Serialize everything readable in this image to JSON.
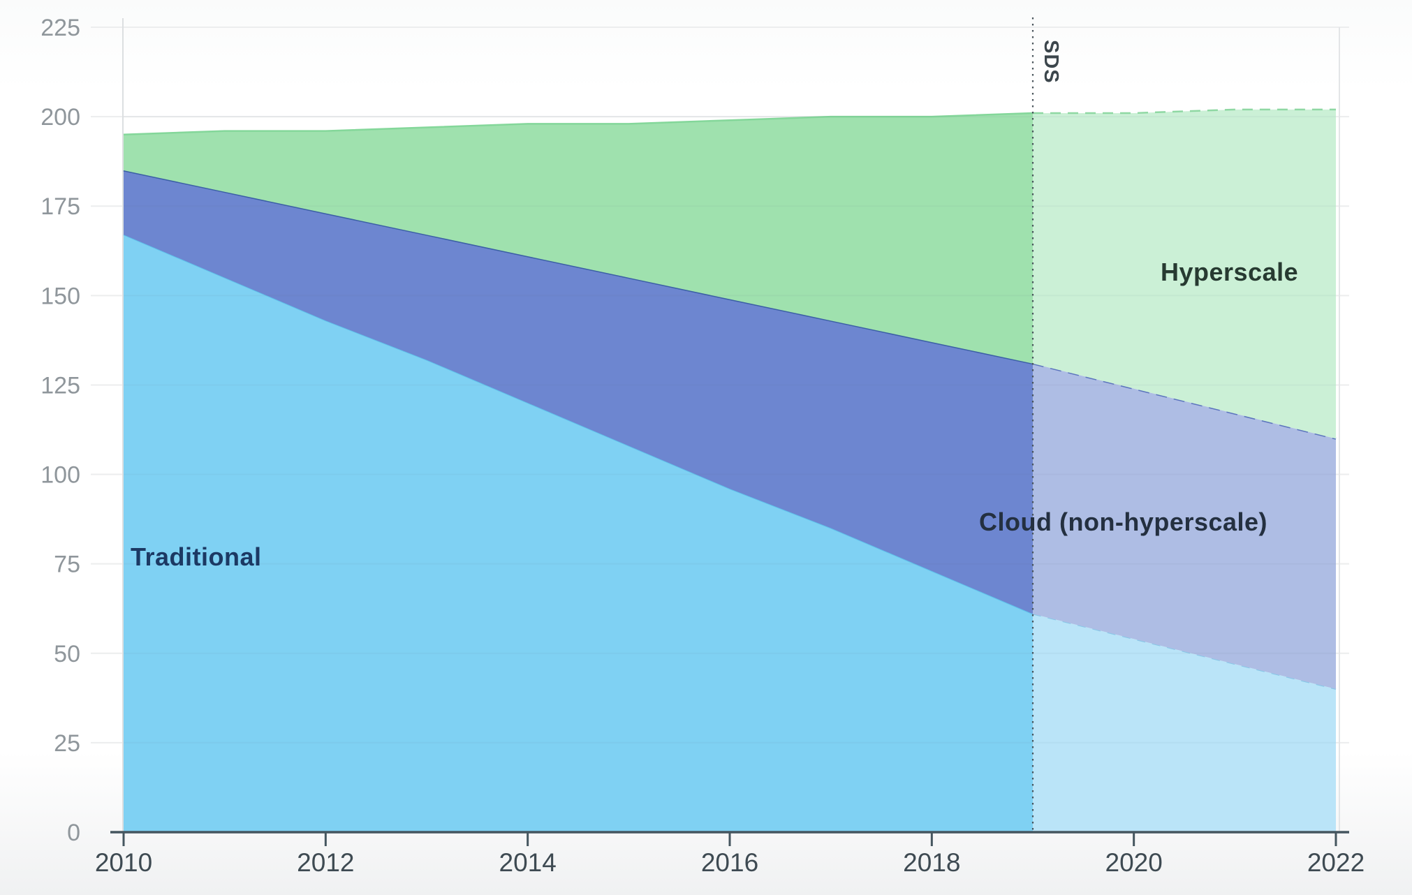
{
  "chart_data": {
    "type": "area",
    "stacked": true,
    "title": "",
    "xlabel": "",
    "ylabel": "",
    "x": [
      2010,
      2011,
      2012,
      2013,
      2014,
      2015,
      2016,
      2017,
      2018,
      2019,
      2020,
      2021,
      2022
    ],
    "xticks": [
      2010,
      2012,
      2014,
      2016,
      2018,
      2020,
      2022
    ],
    "yticks": [
      0,
      25,
      50,
      75,
      100,
      125,
      150,
      175,
      200,
      225
    ],
    "ylim": [
      0,
      225
    ],
    "xlim": [
      2010,
      2022
    ],
    "grid": "horizontal",
    "legend": "inline area labels",
    "projection": {
      "start_x": 2019,
      "divider_label": "SDS",
      "divider_style": "vertical dotted line",
      "style": "lighter fills and dashed top edges after divider"
    },
    "series": [
      {
        "name": "Traditional",
        "values": [
          167,
          155,
          143,
          132,
          120,
          108,
          96,
          85,
          73,
          61,
          54,
          47,
          40
        ],
        "fill": "#7fd1f3",
        "fill_projected": "#bae4f8",
        "edge": "#5fc3ec",
        "edge_projected": "#86c8e8"
      },
      {
        "name": "Cloud (non-hyperscale)",
        "values": [
          18,
          24,
          30,
          35,
          41,
          47,
          53,
          58,
          64,
          70,
          70,
          70,
          70
        ],
        "fill": "#6d86d0",
        "fill_projected": "#aebde4",
        "edge": "#3b5fa5",
        "edge_projected": "#5b74bd"
      },
      {
        "name": "Hyperscale",
        "values": [
          10,
          17,
          23,
          30,
          37,
          43,
          50,
          57,
          63,
          70,
          77,
          85,
          92
        ],
        "fill": "#9fe1ae",
        "fill_projected": "#cbf0d6",
        "edge": "#84d79a",
        "edge_projected": "#8fd8a3"
      }
    ],
    "axis": {
      "line_color": "#45565f",
      "x_label_color": "#3e4a52",
      "y_label_color": "#8f969b",
      "grid_color": "#ecedee",
      "sds_line_color": "#4a555c"
    }
  },
  "labels": {
    "traditional": "Traditional",
    "cloud": "Cloud (non-hyperscale)",
    "hyperscale": "Hyperscale",
    "sds": "SDS"
  }
}
